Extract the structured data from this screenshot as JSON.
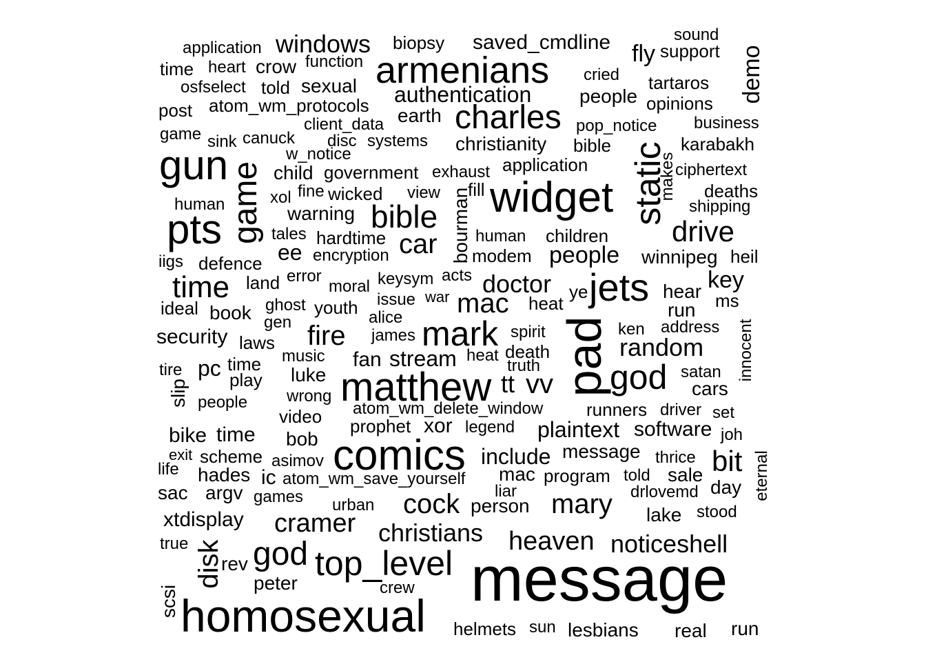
{
  "words": {
    "message_big": "message",
    "homosexual": "homosexual",
    "comics": "comics",
    "matthew": "matthew",
    "widget": "widget",
    "armenians": "armenians",
    "pad": "pad",
    "gun": "gun",
    "pts": "pts",
    "game": "game",
    "static": "static",
    "charles": "charles",
    "jets": "jets",
    "mark": "mark",
    "top_level": "top_level",
    "god_big": "god",
    "god_2": "god",
    "time_big": "time",
    "bible_big": "bible",
    "car": "car",
    "drive": "drive",
    "cock": "cock",
    "mary": "mary",
    "cramer": "cramer",
    "christians": "christians",
    "heaven": "heaven",
    "noticeshell": "noticeshell",
    "disk": "disk",
    "fire": "fire",
    "mac_big": "mac",
    "doctor": "doctor",
    "bit": "bit",
    "vv": "vv",
    "random": "random",
    "key": "key",
    "windows": "windows",
    "authentication": "authentication",
    "saved_cmdline": "saved_cmdline",
    "demo": "demo",
    "fly": "fly",
    "christianity": "christianity",
    "people_1": "people",
    "people_2": "people",
    "people_3": "people",
    "plaintext": "plaintext",
    "software": "software",
    "include": "include",
    "winnipeg": "winnipeg",
    "security": "security",
    "application_1": "application",
    "application_2": "application",
    "biopsy": "biopsy",
    "sound": "sound",
    "support": "support",
    "time_1": "time",
    "time_2": "time",
    "time_3": "time",
    "heart": "heart",
    "crow": "crow",
    "function": "function",
    "cried": "cried",
    "osfselect": "osfselect",
    "told_1": "told",
    "told_2": "told",
    "sexual": "sexual",
    "tartaros": "tartaros",
    "post": "post",
    "atom_wm_protocols": "atom_wm_protocols",
    "earth": "earth",
    "opinions": "opinions",
    "game_small": "game",
    "client_data": "client_data",
    "pop_notice": "pop_notice",
    "business": "business",
    "sink": "sink",
    "canuck": "canuck",
    "disc": "disc",
    "systems": "systems",
    "bible_small": "bible",
    "karabakh": "karabakh",
    "w_notice": "w_notice",
    "child": "child",
    "government": "government",
    "exhaust": "exhaust",
    "makes": "makes",
    "ciphertext": "ciphertext",
    "xol": "xol",
    "fine": "fine",
    "wicked": "wicked",
    "view": "view",
    "fill": "fill",
    "deaths": "deaths",
    "human_1": "human",
    "human_2": "human",
    "shipping": "shipping",
    "warning": "warning",
    "bourman": "bourman",
    "tales": "tales",
    "hardtime": "hardtime",
    "children": "children",
    "iigs": "iigs",
    "defence": "defence",
    "ee": "ee",
    "encryption": "encryption",
    "modem": "modem",
    "heil": "heil",
    "land": "land",
    "error": "error",
    "moral": "moral",
    "keysym": "keysym",
    "acts": "acts",
    "ye": "ye",
    "hear": "hear",
    "ideal": "ideal",
    "book": "book",
    "ghost": "ghost",
    "youth": "youth",
    "issue": "issue",
    "war": "war",
    "heat_1": "heat",
    "heat_2": "heat",
    "ms": "ms",
    "run_1": "run",
    "run_2": "run",
    "gen": "gen",
    "alice": "alice",
    "innocent": "innocent",
    "laws": "laws",
    "james": "james",
    "spirit": "spirit",
    "ken": "ken",
    "address": "address",
    "death": "death",
    "tire": "tire",
    "pc": "pc",
    "music": "music",
    "fan": "fan",
    "stream": "stream",
    "truth": "truth",
    "satan": "satan",
    "slip": "slip",
    "play": "play",
    "luke": "luke",
    "tt": "tt",
    "cars": "cars",
    "wrong": "wrong",
    "atom_wm_delete_window": "atom_wm_delete_window",
    "runners": "runners",
    "driver": "driver",
    "set": "set",
    "video": "video",
    "prophet": "prophet",
    "xor": "xor",
    "legend": "legend",
    "joh": "joh",
    "bike": "bike",
    "bob": "bob",
    "message_small": "message",
    "exit": "exit",
    "scheme": "scheme",
    "asimov": "asimov",
    "thrice": "thrice",
    "eternal": "eternal",
    "life": "life",
    "hades": "hades",
    "ic": "ic",
    "atom_wm_save_yourself": "atom_wm_save_yourself",
    "mac_small": "mac",
    "program": "program",
    "sale": "sale",
    "sac": "sac",
    "argv": "argv",
    "games": "games",
    "liar": "liar",
    "drlovemd": "drlovemd",
    "day": "day",
    "urban": "urban",
    "person": "person",
    "xtdisplay": "xtdisplay",
    "lake": "lake",
    "stood": "stood",
    "true": "true",
    "rev": "rev",
    "scsi": "scsi",
    "peter": "peter",
    "crew": "crew",
    "helmets": "helmets",
    "sun": "sun",
    "lesbians": "lesbians",
    "real": "real"
  }
}
